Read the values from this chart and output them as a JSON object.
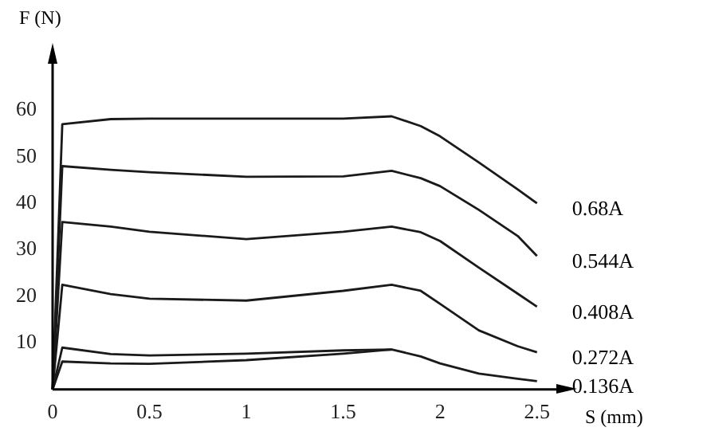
{
  "chart_data": {
    "type": "line",
    "xlabel": "S (mm)",
    "ylabel": "F (N)",
    "x": [
      0,
      0.05,
      0.3,
      0.5,
      1,
      1.5,
      1.75,
      1.9,
      2,
      2.2,
      2.4,
      2.5
    ],
    "xlim": [
      0,
      2.6
    ],
    "ylim": [
      0,
      70
    ],
    "xticks": [
      0,
      0.5,
      1,
      1.5,
      2,
      2.5
    ],
    "yticks": [
      10,
      20,
      30,
      40,
      50,
      60
    ],
    "grid": false,
    "legend": false,
    "marker": "none",
    "line_style": "solid",
    "series": [
      {
        "name": "0.68A",
        "color": "#1a1a1a",
        "values": [
          0,
          57,
          58.1,
          58.2,
          58.2,
          58.2,
          58.7,
          56.6,
          54.4,
          48.8,
          43,
          40
        ]
      },
      {
        "name": "0.544A",
        "color": "#1a1a1a",
        "values": [
          0,
          48,
          47.2,
          46.7,
          45.7,
          45.8,
          47,
          45.4,
          43.7,
          38.6,
          33,
          28.7
        ]
      },
      {
        "name": "0.408A",
        "color": "#1a1a1a",
        "values": [
          0,
          36,
          35,
          33.9,
          32.3,
          33.9,
          35,
          33.8,
          31.9,
          26.2,
          20.6,
          17.8
        ]
      },
      {
        "name": "0.272A",
        "color": "#1a1a1a",
        "values": [
          0,
          22.5,
          20.5,
          19.5,
          19.1,
          21.2,
          22.5,
          21.2,
          18.4,
          12.7,
          9.3,
          8
        ]
      },
      {
        "name": "0.136A",
        "color": "#1a1a1a",
        "values": [
          0,
          9,
          7.6,
          7.3,
          7.7,
          8.4,
          8.6,
          7.1,
          5.6,
          3.4,
          2.3,
          1.8
        ]
      },
      {
        "color": "#1a1a1a",
        "x": [
          0,
          0.05,
          0.3,
          0.5,
          1,
          1.5,
          1.75
        ],
        "values": [
          0,
          6,
          5.6,
          5.5,
          6.3,
          7.7,
          8.6
        ]
      }
    ]
  }
}
